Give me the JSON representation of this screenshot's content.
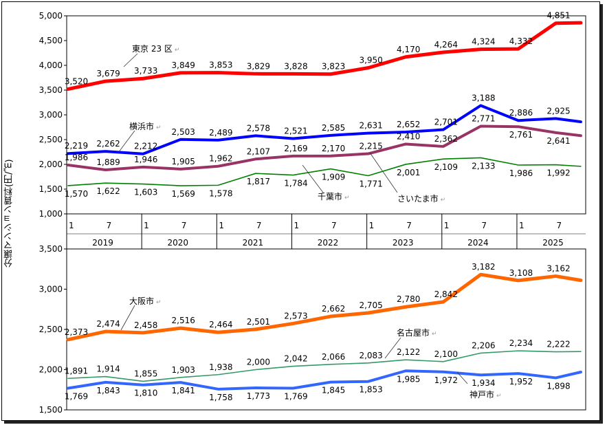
{
  "chart_data": [
    {
      "type": "line",
      "title": "",
      "ylabel": "分譲マンション賃料(円/㎡)",
      "ylim": [
        1000,
        5000
      ],
      "yticks": [
        "1,000",
        "1,500",
        "2,000",
        "2,500",
        "3,000",
        "3,500",
        "4,000",
        "4,500",
        "5,000"
      ],
      "x_start": "2019-01",
      "x_month_ticks": [
        "1",
        "7"
      ],
      "years": [
        "2019",
        "2020",
        "2021",
        "2022",
        "2023",
        "2024",
        "2025"
      ],
      "series": [
        {
          "name": "東京23区",
          "label": "東京 23 区",
          "color": "#ff0000",
          "width": 5,
          "label_pos": "above",
          "values": [
            3520,
            3679,
            3733,
            3849,
            3853,
            3829,
            3828,
            3823,
            3950,
            4170,
            4264,
            4324,
            4332,
            4851
          ],
          "last": 4860
        },
        {
          "name": "横浜市",
          "label": "横浜市",
          "color": "#0000ff",
          "width": 4,
          "label_pos": "above",
          "values": [
            2219,
            2262,
            2212,
            2503,
            2489,
            2578,
            2521,
            2585,
            2631,
            2652,
            2701,
            3188,
            2886,
            2925
          ],
          "last": 2860
        },
        {
          "name": "さいたま市",
          "label": "さいたま市",
          "color": "#993366",
          "width": 4,
          "label_pos": "above",
          "values": [
            1986,
            1889,
            1946,
            1905,
            1962,
            2107,
            2169,
            2170,
            2215,
            2410,
            2362,
            2771,
            2761,
            2641
          ],
          "last": 2580
        },
        {
          "name": "千葉市",
          "label": "千葉市",
          "color": "#008000",
          "width": 1.6,
          "label_pos": "below",
          "values": [
            1570,
            1622,
            1603,
            1569,
            1578,
            1817,
            1784,
            1909,
            1771,
            2001,
            2109,
            2133,
            1986,
            1992
          ],
          "last": 1960
        }
      ]
    },
    {
      "type": "line",
      "ylim": [
        1500,
        3500
      ],
      "yticks": [
        "1,500",
        "2,000",
        "2,500",
        "3,000",
        "3,500"
      ],
      "series": [
        {
          "name": "大阪市",
          "label": "大阪市",
          "color": "#ff6600",
          "width": 5,
          "label_pos": "above",
          "values": [
            2373,
            2474,
            2458,
            2516,
            2464,
            2501,
            2573,
            2662,
            2705,
            2780,
            2842,
            3182,
            3108,
            3162
          ],
          "last": 3110
        },
        {
          "name": "名古屋市",
          "label": "名古屋市",
          "color": "#339966",
          "width": 1.6,
          "label_pos": "above",
          "values": [
            1891,
            1914,
            1855,
            1903,
            1938,
            2000,
            2042,
            2066,
            2083,
            2122,
            2100,
            2206,
            2234,
            2222
          ],
          "last": 2225
        },
        {
          "name": "神戸市",
          "label": "神戸市",
          "color": "#3366ff",
          "width": 4,
          "label_pos": "below",
          "values": [
            1769,
            1843,
            1810,
            1841,
            1758,
            1773,
            1769,
            1845,
            1853,
            1985,
            1972,
            1934,
            1952,
            1898
          ],
          "last": 1970
        }
      ]
    }
  ]
}
